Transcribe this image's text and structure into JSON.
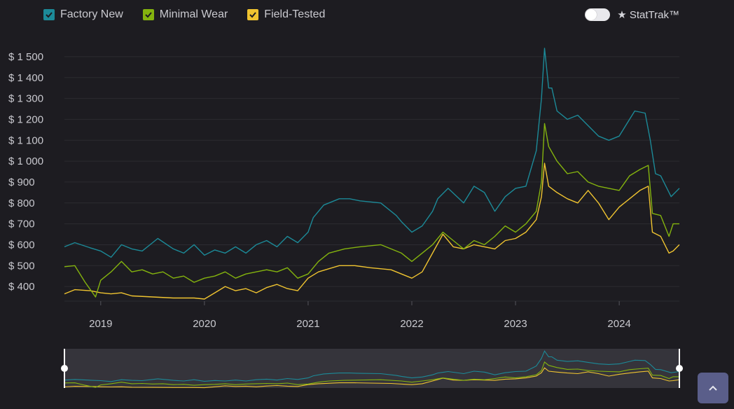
{
  "legend": [
    {
      "label": "Factory New",
      "color": "#1c8a98"
    },
    {
      "label": "Minimal Wear",
      "color": "#84b30e"
    },
    {
      "label": "Field-Tested",
      "color": "#f0c430"
    }
  ],
  "toggle": {
    "label": "★ StatTrak™",
    "on": false
  },
  "scroll_top_icon": "chevron-up-icon",
  "chart_data": {
    "type": "line",
    "title": "",
    "xlabel": "",
    "ylabel": "",
    "ylim": [
      330,
      1550
    ],
    "xlim": [
      "2018-08-25",
      "2024-08-01"
    ],
    "y_ticks": [
      "$ 400",
      "$ 500",
      "$ 600",
      "$ 700",
      "$ 800",
      "$ 900",
      "$ 1 000",
      "$ 1 100",
      "$ 1 200",
      "$ 1 300",
      "$ 1 400",
      "$ 1 500"
    ],
    "y_tick_values": [
      400,
      500,
      600,
      700,
      800,
      900,
      1000,
      1100,
      1200,
      1300,
      1400,
      1500
    ],
    "x_ticks": [
      "2019",
      "2020",
      "2021",
      "2022",
      "2023",
      "2024"
    ],
    "x_tick_values": [
      2019,
      2020,
      2021,
      2022,
      2023,
      2024
    ],
    "grid": true,
    "legend_position": "top-left",
    "series": [
      {
        "name": "Factory New",
        "color": "#1c8a98",
        "x": [
          2018.65,
          2018.75,
          2018.9,
          2019.0,
          2019.1,
          2019.2,
          2019.3,
          2019.4,
          2019.5,
          2019.55,
          2019.7,
          2019.8,
          2019.9,
          2020.0,
          2020.1,
          2020.2,
          2020.3,
          2020.4,
          2020.5,
          2020.6,
          2020.7,
          2020.8,
          2020.9,
          2021.0,
          2021.05,
          2021.15,
          2021.3,
          2021.4,
          2021.5,
          2021.7,
          2021.85,
          2021.9,
          2022.0,
          2022.1,
          2022.2,
          2022.25,
          2022.35,
          2022.5,
          2022.6,
          2022.7,
          2022.8,
          2022.9,
          2023.0,
          2023.1,
          2023.2,
          2023.25,
          2023.28,
          2023.32,
          2023.35,
          2023.4,
          2023.5,
          2023.6,
          2023.7,
          2023.8,
          2023.9,
          2024.0,
          2024.1,
          2024.15,
          2024.25,
          2024.3,
          2024.35,
          2024.4,
          2024.5,
          2024.58
        ],
        "y": [
          590,
          610,
          585,
          570,
          540,
          600,
          580,
          570,
          610,
          630,
          580,
          560,
          600,
          550,
          575,
          560,
          590,
          560,
          600,
          620,
          590,
          640,
          610,
          660,
          730,
          790,
          820,
          820,
          810,
          800,
          740,
          710,
          660,
          690,
          760,
          820,
          870,
          800,
          880,
          850,
          760,
          830,
          870,
          880,
          1050,
          1300,
          1540,
          1350,
          1350,
          1240,
          1200,
          1220,
          1170,
          1120,
          1100,
          1120,
          1200,
          1240,
          1230,
          1100,
          940,
          930,
          830,
          870
        ]
      },
      {
        "name": "Minimal Wear",
        "color": "#84b30e",
        "x": [
          2018.65,
          2018.75,
          2018.85,
          2018.95,
          2019.0,
          2019.1,
          2019.2,
          2019.3,
          2019.4,
          2019.5,
          2019.6,
          2019.7,
          2019.8,
          2019.9,
          2020.0,
          2020.1,
          2020.2,
          2020.3,
          2020.4,
          2020.5,
          2020.6,
          2020.7,
          2020.8,
          2020.9,
          2021.0,
          2021.1,
          2021.2,
          2021.35,
          2021.5,
          2021.7,
          2021.9,
          2022.0,
          2022.1,
          2022.2,
          2022.3,
          2022.4,
          2022.5,
          2022.6,
          2022.7,
          2022.8,
          2022.9,
          2023.0,
          2023.1,
          2023.2,
          2023.25,
          2023.28,
          2023.32,
          2023.4,
          2023.5,
          2023.6,
          2023.7,
          2023.8,
          2023.9,
          2024.0,
          2024.1,
          2024.2,
          2024.28,
          2024.32,
          2024.4,
          2024.48,
          2024.52,
          2024.58
        ],
        "y": [
          495,
          500,
          420,
          350,
          430,
          470,
          520,
          470,
          480,
          460,
          470,
          440,
          450,
          420,
          440,
          450,
          470,
          440,
          460,
          470,
          480,
          470,
          490,
          440,
          460,
          520,
          560,
          580,
          590,
          600,
          560,
          520,
          560,
          600,
          660,
          620,
          580,
          620,
          600,
          640,
          690,
          660,
          700,
          760,
          900,
          1180,
          1070,
          1000,
          940,
          950,
          900,
          880,
          870,
          860,
          930,
          960,
          980,
          750,
          740,
          640,
          700,
          700
        ]
      },
      {
        "name": "Field-Tested",
        "color": "#f0c430",
        "x": [
          2018.65,
          2018.75,
          2018.9,
          2019.0,
          2019.1,
          2019.2,
          2019.3,
          2019.5,
          2019.7,
          2019.9,
          2020.0,
          2020.1,
          2020.2,
          2020.3,
          2020.4,
          2020.5,
          2020.6,
          2020.7,
          2020.8,
          2020.9,
          2021.0,
          2021.1,
          2021.3,
          2021.45,
          2021.6,
          2021.8,
          2021.95,
          2022.0,
          2022.1,
          2022.2,
          2022.3,
          2022.4,
          2022.5,
          2022.6,
          2022.7,
          2022.8,
          2022.9,
          2023.0,
          2023.1,
          2023.2,
          2023.25,
          2023.28,
          2023.32,
          2023.4,
          2023.5,
          2023.6,
          2023.7,
          2023.8,
          2023.9,
          2024.0,
          2024.1,
          2024.2,
          2024.28,
          2024.32,
          2024.4,
          2024.48,
          2024.52,
          2024.58
        ],
        "y": [
          365,
          385,
          380,
          370,
          365,
          370,
          355,
          350,
          345,
          345,
          340,
          370,
          400,
          380,
          390,
          370,
          395,
          410,
          390,
          380,
          440,
          470,
          500,
          500,
          490,
          480,
          450,
          440,
          470,
          560,
          650,
          590,
          580,
          600,
          590,
          580,
          620,
          630,
          660,
          720,
          830,
          990,
          880,
          850,
          820,
          800,
          860,
          800,
          720,
          780,
          820,
          860,
          880,
          660,
          640,
          560,
          570,
          600
        ]
      }
    ]
  }
}
